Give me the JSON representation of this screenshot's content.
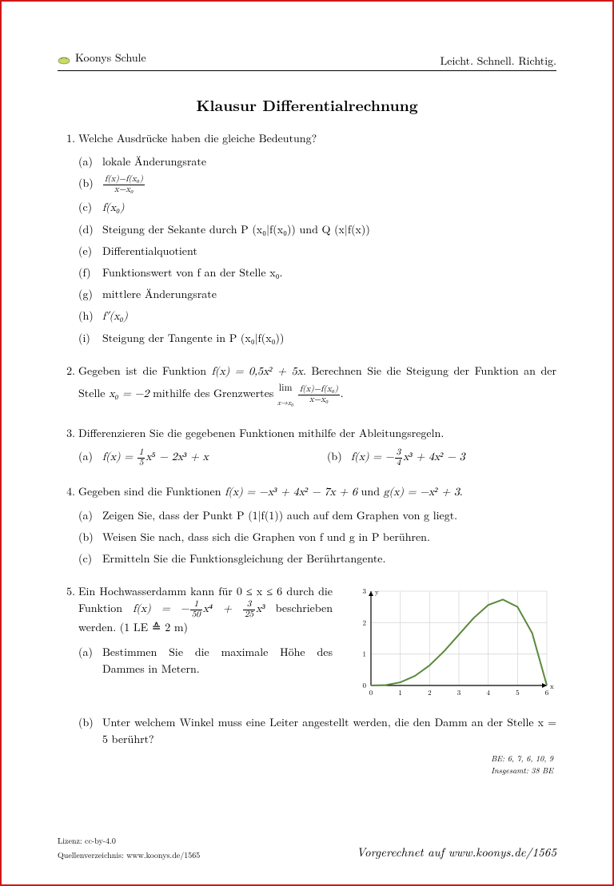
{
  "header": {
    "brand": "Koonys Schule",
    "tagline": "Leicht. Schnell. Richtig."
  },
  "title": "Klausur Differentialrechnung",
  "q1": {
    "num": "1.",
    "text": "Welche Ausdrücke haben die gleiche Bedeutung?",
    "items": {
      "a": "(a)",
      "a_text": "lokale Änderungsrate",
      "b": "(b)",
      "c": "(c)",
      "c_math": "f(x₀)",
      "d": "(d)",
      "d_text": "Steigung der Sekante durch P (x₀|f(x₀)) und Q (x|f(x))",
      "e": "(e)",
      "e_text": "Differentialquotient",
      "f": "(f)",
      "f_text": "Funktionswert von f an der Stelle x₀.",
      "g": "(g)",
      "g_text": "mittlere Änderungsrate",
      "h": "(h)",
      "h_math": "f′(x₀)",
      "i": "(i)",
      "i_text": "Steigung der Tangente in P (x₀|f(x₀))"
    }
  },
  "q2": {
    "num": "2.",
    "text_a": "Gegeben ist die Funktion ",
    "fx": "f(x) = 0,5x² + 5x",
    "text_b": ". Berechnen Sie die Steigung der Funktion an der Stelle ",
    "x0": "x₀ = −2",
    "text_c": " mithilfe des Grenzwertes ",
    "lim_label": "lim",
    "lim_sub": "x→x₀",
    "frac_top": "f(x)−f(x₀)",
    "frac_bot": "x−x₀",
    "dot": "."
  },
  "q3": {
    "num": "3.",
    "text": "Differenzieren Sie die gegebenen Funktionen mithilfe der Ableitungsregeln.",
    "a": "(a)",
    "a_math_pre": "f(x) = ",
    "a_frac_top": "1",
    "a_frac_bot": "5",
    "a_math_post": "x⁵ − 2x³ + x",
    "b": "(b)",
    "b_math_pre": "f(x) = −",
    "b_frac_top": "3",
    "b_frac_bot": "4",
    "b_math_post": "x³ + 4x² − 3"
  },
  "q4": {
    "num": "4.",
    "text_a": "Gegeben sind die Funktionen ",
    "fx": "f(x) = −x³ + 4x² − 7x + 6",
    "text_b": " und ",
    "gx": "g(x) = −x² + 3",
    "dot": ".",
    "a": "(a)",
    "a_text": "Zeigen Sie, dass der Punkt P (1|f(1)) auch auf dem Graphen von g liegt.",
    "b": "(b)",
    "b_text": "Weisen Sie nach, dass sich die Graphen von f und g in P berühren.",
    "c": "(c)",
    "c_text": "Ermitteln Sie die Funktionsgleichung der Berührtangente."
  },
  "q5": {
    "num": "5.",
    "text_a": "Ein Hochwasserdamm kann für 0 ≤ x ≤ 6 durch die Funktion ",
    "fx_pre": "f(x) = −",
    "f1t": "1",
    "f1b": "50",
    "mid": "x⁴ + ",
    "f2t": "3",
    "f2b": "25",
    "fx_post": "x³",
    "text_b": " beschrieben werden. (1 LE ≙ 2 m)",
    "a": "(a)",
    "a_text": "Bestimmen Sie die maximale Höhe des Dammes in Metern.",
    "b": "(b)",
    "b_text": "Unter welchem Winkel muss eine Leiter angestellt werden, die den Damm an der Stelle x = 5 berührt?"
  },
  "chart": {
    "type": "line",
    "xlim": [
      0,
      6
    ],
    "ylim": [
      0,
      3
    ],
    "xticks": [
      0,
      1,
      2,
      3,
      4,
      5,
      6
    ],
    "yticks": [
      0,
      1,
      2,
      3
    ],
    "xlabel": "x",
    "ylabel": "y",
    "line_color": "#5a8a3a",
    "line_width": 2,
    "grid_color": "#d8d8d8",
    "axis_color": "#000000",
    "background_color": "#ffffff",
    "points": [
      [
        0,
        0
      ],
      [
        0.5,
        0.014
      ],
      [
        1,
        0.1
      ],
      [
        1.5,
        0.304
      ],
      [
        2,
        0.64
      ],
      [
        2.5,
        1.094
      ],
      [
        3,
        1.62
      ],
      [
        3.5,
        2.144
      ],
      [
        4,
        2.56
      ],
      [
        4.5,
        2.734
      ],
      [
        5,
        2.5
      ],
      [
        5.5,
        1.664
      ],
      [
        6,
        0
      ]
    ]
  },
  "be": {
    "line1": "BE: 6, 7, 6, 10, 9",
    "line2": "Insgesamt: 38 BE"
  },
  "footer": {
    "license": "Lizenz: cc-by-4.0",
    "source": "Quellenverzeichnis: www.koonys.de/1565",
    "right": "Vorgerechnet auf www.koonys.de/1565"
  }
}
